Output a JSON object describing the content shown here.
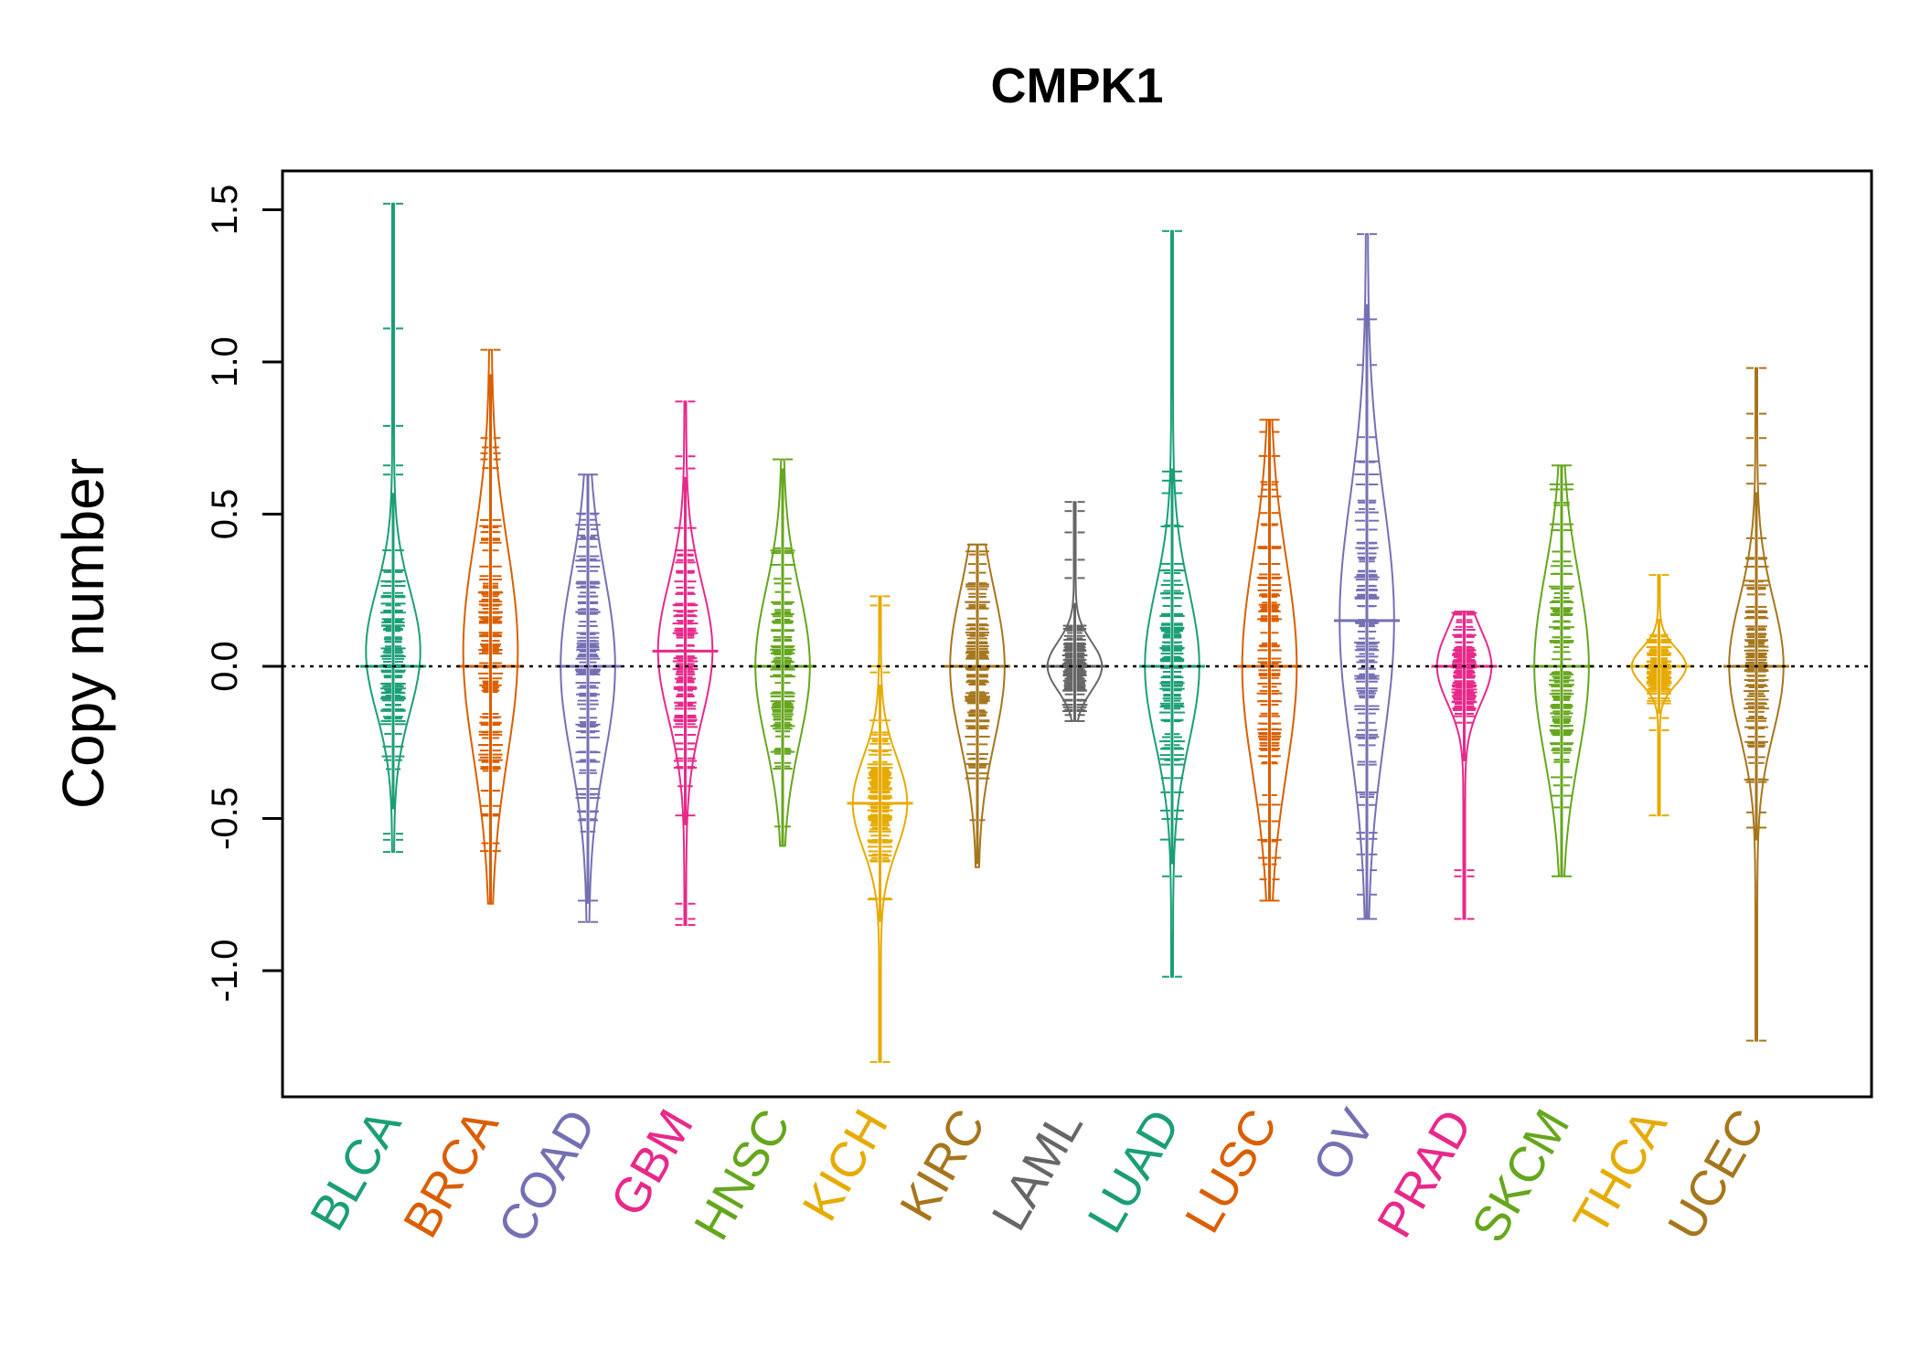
{
  "chart_data": {
    "type": "beanplot",
    "title": "CMPK1",
    "xlabel": "",
    "ylabel": "Copy number",
    "ylim": [
      -1.4,
      1.6
    ],
    "yticks": [
      -1.0,
      -0.5,
      0.0,
      0.5,
      1.0,
      1.5
    ],
    "ytick_labels": [
      "-1.0",
      "-0.5",
      "0.0",
      "0.5",
      "1.0",
      "1.5"
    ],
    "reference_line": 0.0,
    "categories": [
      {
        "name": "BLCA",
        "color": "#1b9e77",
        "median": 0.0,
        "max": 1.52,
        "min": -0.61,
        "density_peak": 0.05,
        "spread": 0.2,
        "outliers": [
          1.52,
          1.11,
          0.79,
          0.66,
          0.63,
          -0.55,
          -0.57,
          -0.61
        ]
      },
      {
        "name": "BRCA",
        "color": "#d95f02",
        "median": 0.0,
        "max": 1.04,
        "min": -0.78,
        "density_peak": 0.05,
        "spread": 0.35,
        "outliers": [
          1.04,
          0.75,
          0.7,
          0.68
        ]
      },
      {
        "name": "COAD",
        "color": "#7570b3",
        "median": 0.0,
        "max": 0.63,
        "min": -0.84,
        "density_peak": 0.0,
        "spread": 0.3,
        "outliers": [
          0.63,
          0.5,
          0.45,
          0.43,
          -0.77,
          -0.84
        ]
      },
      {
        "name": "GBM",
        "color": "#e7298a",
        "median": 0.05,
        "max": 0.87,
        "min": -0.85,
        "density_peak": 0.05,
        "spread": 0.22,
        "outliers": [
          0.87,
          0.69,
          0.65,
          -0.49,
          -0.78,
          -0.83,
          -0.85
        ]
      },
      {
        "name": "HNSC",
        "color": "#66a61e",
        "median": 0.0,
        "max": 0.68,
        "min": -0.59,
        "density_peak": 0.0,
        "spread": 0.25,
        "outliers": [
          0.68
        ]
      },
      {
        "name": "KICH",
        "color": "#e6ab02",
        "median": -0.45,
        "max": 0.23,
        "min": -1.3,
        "density_peak": -0.45,
        "spread": 0.15,
        "outliers": [
          0.23,
          0.2,
          0.0,
          -0.02,
          -1.3
        ]
      },
      {
        "name": "KIRC",
        "color": "#a6761d",
        "median": 0.0,
        "max": 0.4,
        "min": -0.66,
        "density_peak": 0.0,
        "spread": 0.25,
        "outliers": [
          0.4
        ]
      },
      {
        "name": "LAML",
        "color": "#666666",
        "median": 0.0,
        "max": 0.54,
        "min": -0.18,
        "density_peak": 0.0,
        "spread": 0.08,
        "outliers": [
          0.54,
          0.51,
          0.44,
          0.35,
          0.29,
          -0.16,
          -0.18
        ]
      },
      {
        "name": "LUAD",
        "color": "#1b9e77",
        "median": 0.0,
        "max": 1.43,
        "min": -1.02,
        "density_peak": 0.0,
        "spread": 0.25,
        "outliers": [
          1.43,
          0.64,
          0.61,
          -0.69,
          -1.02
        ]
      },
      {
        "name": "LUSC",
        "color": "#d95f02",
        "median": 0.0,
        "max": 0.81,
        "min": -0.77,
        "density_peak": 0.0,
        "spread": 0.35,
        "outliers": [
          0.81,
          0.77,
          -0.7,
          -0.77
        ]
      },
      {
        "name": "OV",
        "color": "#7570b3",
        "median": 0.15,
        "max": 1.42,
        "min": -0.83,
        "density_peak": 0.15,
        "spread": 0.4,
        "outliers": [
          1.42,
          1.14,
          0.99,
          -0.67,
          -0.75,
          -0.83
        ]
      },
      {
        "name": "PRAD",
        "color": "#e7298a",
        "median": 0.0,
        "max": 0.18,
        "min": -0.83,
        "density_peak": 0.0,
        "spread": 0.12,
        "outliers": [
          -0.67,
          -0.69,
          -0.83
        ]
      },
      {
        "name": "SKCM",
        "color": "#66a61e",
        "median": 0.0,
        "max": 0.66,
        "min": -0.69,
        "density_peak": 0.0,
        "spread": 0.3,
        "outliers": [
          0.66,
          -0.69
        ]
      },
      {
        "name": "THCA",
        "color": "#e6ab02",
        "median": 0.0,
        "max": 0.3,
        "min": -0.49,
        "density_peak": 0.0,
        "spread": 0.06,
        "outliers": [
          0.3,
          -0.17,
          -0.21,
          -0.49
        ]
      },
      {
        "name": "UCEC",
        "color": "#a6761d",
        "median": 0.0,
        "max": 0.98,
        "min": -1.23,
        "density_peak": 0.0,
        "spread": 0.22,
        "outliers": [
          0.98,
          0.83,
          0.75,
          0.66,
          0.6,
          -0.48,
          -0.53,
          -1.23
        ]
      }
    ]
  }
}
